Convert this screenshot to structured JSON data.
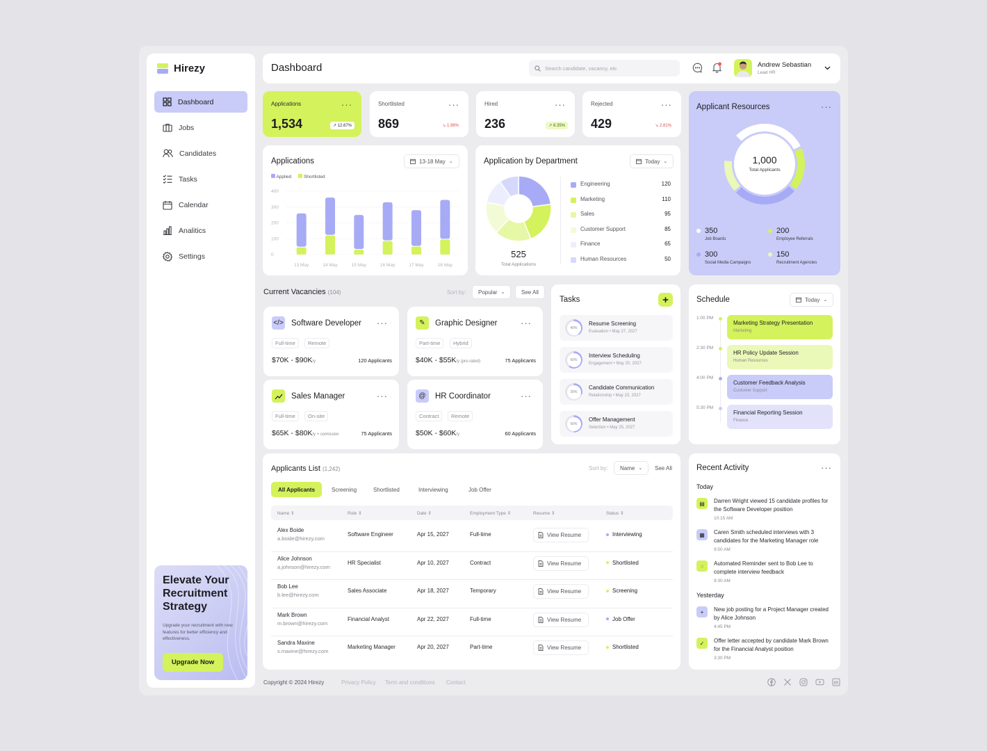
{
  "app": {
    "name": "Hirezy"
  },
  "sidebar": {
    "items": [
      {
        "label": "Dashboard",
        "icon": "dashboard-icon",
        "active": true
      },
      {
        "label": "Jobs",
        "icon": "briefcase-icon"
      },
      {
        "label": "Candidates",
        "icon": "users-icon"
      },
      {
        "label": "Tasks",
        "icon": "checklist-icon"
      },
      {
        "label": "Calendar",
        "icon": "calendar-icon"
      },
      {
        "label": "Analitics",
        "icon": "chart-icon"
      },
      {
        "label": "Settings",
        "icon": "gear-icon"
      }
    ],
    "promo": {
      "title": "Elevate Your Recruitment Strategy",
      "text": "Upgrade your recruitment with new features for better efficiency and effectiveness.",
      "button": "Upgrade Now"
    }
  },
  "header": {
    "title": "Dashboard",
    "search_placeholder": "Search candidate, vacancy, etc",
    "user": {
      "name": "Andrew Sebastian",
      "role": "Lead HR"
    }
  },
  "stats": [
    {
      "label": "Applications",
      "value": "1,534",
      "change": "12.67%",
      "trend": "up"
    },
    {
      "label": "Shortlisted",
      "value": "869",
      "change": "1.98%",
      "trend": "down"
    },
    {
      "label": "Hired",
      "value": "236",
      "change": "8.35%",
      "trend": "up"
    },
    {
      "label": "Rejected",
      "value": "429",
      "change": "2.81%",
      "trend": "down"
    }
  ],
  "applications_chart": {
    "title": "Applications",
    "range": "13-18 May",
    "legend": [
      "Applied",
      "Shortlisted"
    ]
  },
  "chart_data": {
    "type": "bar",
    "stacked": true,
    "categories": [
      "13 May",
      "14 May",
      "15 May",
      "16 May",
      "17 May",
      "18 May"
    ],
    "series": [
      {
        "name": "Applied",
        "values": [
          215,
          240,
          220,
          245,
          230,
          250
        ],
        "color": "#a7abf5"
      },
      {
        "name": "Shortlisted",
        "values": [
          45,
          120,
          30,
          85,
          50,
          95
        ],
        "color": "#d4f25b"
      }
    ],
    "yticks": [
      0,
      100,
      200,
      300,
      400
    ],
    "ylim": [
      0,
      400
    ]
  },
  "department": {
    "title": "Application by Department",
    "filter": "Today",
    "total": "525",
    "total_label": "Total Applications",
    "items": [
      {
        "name": "Engineering",
        "value": "120",
        "color": "#a7abf5"
      },
      {
        "name": "Marketing",
        "value": "110",
        "color": "#d4f25b"
      },
      {
        "name": "Sales",
        "value": "95",
        "color": "#e6f7a6"
      },
      {
        "name": "Customer Support",
        "value": "85",
        "color": "#f3fbd6"
      },
      {
        "name": "Finance",
        "value": "65",
        "color": "#eceefd"
      },
      {
        "name": "Human Resources",
        "value": "50",
        "color": "#d6d8fb"
      }
    ]
  },
  "resources": {
    "title": "Applicant Resources",
    "total": "1,000",
    "total_label": "Total Applicants",
    "items": [
      {
        "value": "350",
        "label": "Job Boards"
      },
      {
        "value": "200",
        "label": "Employee Referrals"
      },
      {
        "value": "300",
        "label": "Social Media Campaigns"
      },
      {
        "value": "150",
        "label": "Recruitment Agencies"
      }
    ]
  },
  "vacancies": {
    "title": "Current Vacancies",
    "count": "(104)",
    "sort_label": "Sort by:",
    "sort_value": "Popular",
    "see_all": "See All",
    "items": [
      {
        "title": "Software Developer",
        "icon": "code-icon",
        "tags": [
          "Full-time",
          "Remote"
        ],
        "salary": "$70K - $90K",
        "unit": "/y",
        "applicants": "120 Applicants"
      },
      {
        "title": "Graphic Designer",
        "icon": "pen-tool-icon",
        "tags": [
          "Part-time",
          "Hybrid"
        ],
        "salary": "$40K - $55K",
        "unit": "/y (pro-rated)",
        "applicants": "75 Applicants"
      },
      {
        "title": "Sales Manager",
        "icon": "trend-chart-icon",
        "tags": [
          "Full-time",
          "On-site"
        ],
        "salary": "$65K - $80K",
        "unit": "/y + comission",
        "applicants": "75 Applicants"
      },
      {
        "title": "HR Coordinator",
        "icon": "at-sign-icon",
        "tags": [
          "Contract",
          "Remote"
        ],
        "salary": "$50K - $60K",
        "unit": "/y",
        "applicants": "60 Applicants"
      }
    ]
  },
  "tasks": {
    "title": "Tasks",
    "items": [
      {
        "title": "Resume Screening",
        "category": "Evaluation",
        "date": "May 27, 2027",
        "progress": "40%"
      },
      {
        "title": "Interview Scheduling",
        "category": "Engagement",
        "date": "May 20, 2027",
        "progress": "60%"
      },
      {
        "title": "Candidate Communication",
        "category": "Relationship",
        "date": "May 23, 2027",
        "progress": "30%"
      },
      {
        "title": "Offer Management",
        "category": "Selection",
        "date": "May 25, 2027",
        "progress": "50%"
      }
    ]
  },
  "schedule": {
    "title": "Schedule",
    "filter": "Today",
    "items": [
      {
        "time": "1:00 PM",
        "title": "Marketing Strategy Presentation",
        "category": "Marketing",
        "color": "#d4f25b",
        "dot": "#d4f25b"
      },
      {
        "time": "2:30 PM",
        "title": "HR Policy Update Session",
        "category": "Human Resources",
        "color": "#eaf8b8",
        "dot": "#d4f25b"
      },
      {
        "time": "4:00 PM",
        "title": "Customer Feedback Analysis",
        "category": "Customer Support",
        "color": "#c9ccf8",
        "dot": "#a7abf5"
      },
      {
        "time": "5:30 PM",
        "title": "Financial Reporting Session",
        "category": "Finance",
        "color": "#e2e3fb",
        "dot": "#c9ccf8"
      }
    ]
  },
  "applicants": {
    "title": "Applicants List",
    "count": "(1,242)",
    "sort_label": "Sort by:",
    "sort_value": "Name",
    "see_all": "See All",
    "tabs": [
      "All Applicants",
      "Screening",
      "Shortlisted",
      "Interviewing",
      "Job Offer"
    ],
    "columns": [
      "Name",
      "Role",
      "Date",
      "Employment Type",
      "Resume",
      "Status"
    ],
    "resume_label": "View Resume",
    "rows": [
      {
        "name": "Alex Boide",
        "email": "a.boide@hirezy.com",
        "role": "Software Engineer",
        "date": "Apr 15, 2027",
        "type": "Full-time",
        "status": "Interviewing",
        "status_color": "#a7abf5"
      },
      {
        "name": "Alice Johnson",
        "email": "a.johnson@hirezy.com",
        "role": "HR Specialist",
        "date": "Apr 10, 2027",
        "type": "Contract",
        "status": "Shortlisted",
        "status_color": "#d4f25b"
      },
      {
        "name": "Bob Lee",
        "email": "b.lee@hirezy.com",
        "role": "Sales Associate",
        "date": "Apr 18, 2027",
        "type": "Temporary",
        "status": "Screening",
        "status_color": "#d4f25b"
      },
      {
        "name": "Mark Brown",
        "email": "m.brown@hirezy.com",
        "role": "Financial Analyst",
        "date": "Apr 22, 2027",
        "type": "Full-time",
        "status": "Job Offer",
        "status_color": "#a7abf5"
      },
      {
        "name": "Sandra Maxine",
        "email": "s.maxine@hirezy.com",
        "role": "Marketing Manager",
        "date": "Apr 20, 2027",
        "type": "Part-time",
        "status": "Shortlisted",
        "status_color": "#d4f25b"
      }
    ]
  },
  "activity": {
    "title": "Recent Activity",
    "today_label": "Today",
    "yesterday_label": "Yesterday",
    "today": [
      {
        "text": "Darren Wright viewed 15 candidate profiles for the Software Developer position",
        "time": "10:15 AM",
        "icon": "document-icon",
        "color": "#d4f25b"
      },
      {
        "text": "Caren Smith scheduled interviews with 3 candidates for the Marketing Manager role",
        "time": "9:50 AM",
        "icon": "calendar-icon",
        "color": "#c9ccf8"
      },
      {
        "text": "Automated Reminder sent to Bob Lee to complete interview feedback",
        "time": "9:30 AM",
        "icon": "bell-icon",
        "color": "#d4f25b"
      }
    ],
    "yesterday": [
      {
        "text": "New job posting for a Project Manager created by Alice Johnson",
        "time": "4:45 PM",
        "icon": "plus-icon",
        "color": "#c9ccf8"
      },
      {
        "text": "Offer letter accepted by candidate Mark Brown for the Financial Analyst position",
        "time": "3:30 PM",
        "icon": "check-icon",
        "color": "#d4f25b"
      }
    ]
  },
  "footer": {
    "copyright": "Copyright © 2024 Hirezy",
    "links": [
      "Privacy Policy",
      "Term and conditions",
      "Contact"
    ],
    "social": [
      "facebook-icon",
      "x-icon",
      "instagram-icon",
      "youtube-icon",
      "linkedin-icon"
    ]
  }
}
